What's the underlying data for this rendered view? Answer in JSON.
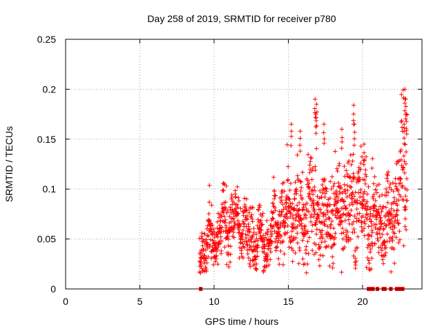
{
  "chart_data": {
    "type": "scatter",
    "title": "Day 258 of 2019, SRMTID for receiver p780",
    "xlabel": "GPS time / hours",
    "ylabel": "SRMTID / TECUs",
    "xlim": [
      0,
      24
    ],
    "ylim": [
      0,
      0.25
    ],
    "xticks": [
      0,
      5,
      10,
      15,
      20
    ],
    "xtick_labels": [
      "0",
      "5",
      "10",
      "15",
      "20"
    ],
    "yticks": [
      0,
      0.05,
      0.1,
      0.15,
      0.2,
      0.25
    ],
    "ytick_labels": [
      "0",
      "0.05",
      "0.1",
      "0.15",
      "0.2",
      "0.25"
    ],
    "grid": true,
    "marker": "plus",
    "marker_color": "#ff0000",
    "data_description": "Dense noisy cluster of plus markers from ~9 to ~23 hours; trend rises from ~0.04 near 9-10 h to ~0.07 at 11-12 h, dips to ~0.045 at 13-14 h, rises to ~0.08-0.1 at 15-20 h with spikes near 0.19 (16.8 h), 0.185 (19.4 h), 0.165 (15.2 h), and up to ~0.2 at 22.9 h.",
    "series": [
      {
        "name": "SRMTID",
        "envelope": [
          {
            "x": 9.0,
            "mean": 0.038,
            "spread": 0.012
          },
          {
            "x": 9.5,
            "mean": 0.045,
            "spread": 0.013
          },
          {
            "x": 10.0,
            "mean": 0.055,
            "spread": 0.015
          },
          {
            "x": 10.5,
            "mean": 0.06,
            "spread": 0.016
          },
          {
            "x": 11.0,
            "mean": 0.07,
            "spread": 0.015
          },
          {
            "x": 11.5,
            "mean": 0.068,
            "spread": 0.015
          },
          {
            "x": 12.0,
            "mean": 0.062,
            "spread": 0.015
          },
          {
            "x": 12.5,
            "mean": 0.055,
            "spread": 0.015
          },
          {
            "x": 13.0,
            "mean": 0.05,
            "spread": 0.014
          },
          {
            "x": 13.5,
            "mean": 0.045,
            "spread": 0.013
          },
          {
            "x": 14.0,
            "mean": 0.055,
            "spread": 0.015
          },
          {
            "x": 14.5,
            "mean": 0.07,
            "spread": 0.017
          },
          {
            "x": 15.0,
            "mean": 0.075,
            "spread": 0.02
          },
          {
            "x": 15.5,
            "mean": 0.07,
            "spread": 0.02
          },
          {
            "x": 16.0,
            "mean": 0.072,
            "spread": 0.02
          },
          {
            "x": 16.5,
            "mean": 0.085,
            "spread": 0.025
          },
          {
            "x": 17.0,
            "mean": 0.075,
            "spread": 0.022
          },
          {
            "x": 17.5,
            "mean": 0.07,
            "spread": 0.02
          },
          {
            "x": 18.0,
            "mean": 0.075,
            "spread": 0.022
          },
          {
            "x": 18.5,
            "mean": 0.08,
            "spread": 0.024
          },
          {
            "x": 19.0,
            "mean": 0.085,
            "spread": 0.025
          },
          {
            "x": 19.5,
            "mean": 0.09,
            "spread": 0.025
          },
          {
            "x": 20.0,
            "mean": 0.085,
            "spread": 0.025
          },
          {
            "x": 20.5,
            "mean": 0.07,
            "spread": 0.02
          },
          {
            "x": 21.0,
            "mean": 0.065,
            "spread": 0.02
          },
          {
            "x": 21.5,
            "mean": 0.07,
            "spread": 0.02
          },
          {
            "x": 22.0,
            "mean": 0.075,
            "spread": 0.022
          },
          {
            "x": 22.5,
            "mean": 0.1,
            "spread": 0.03
          },
          {
            "x": 23.0,
            "mean": 0.14,
            "spread": 0.04
          }
        ],
        "spikes": [
          {
            "x": 15.2,
            "y": 0.165
          },
          {
            "x": 15.8,
            "y": 0.158
          },
          {
            "x": 16.8,
            "y": 0.19
          },
          {
            "x": 16.85,
            "y": 0.175
          },
          {
            "x": 16.9,
            "y": 0.185
          },
          {
            "x": 17.4,
            "y": 0.165
          },
          {
            "x": 18.6,
            "y": 0.16
          },
          {
            "x": 19.4,
            "y": 0.184
          },
          {
            "x": 19.45,
            "y": 0.165
          },
          {
            "x": 20.1,
            "y": 0.145
          },
          {
            "x": 22.85,
            "y": 0.2
          },
          {
            "x": 22.9,
            "y": 0.19
          },
          {
            "x": 22.95,
            "y": 0.175
          },
          {
            "x": 22.8,
            "y": 0.165
          }
        ],
        "zero_markers_x": [
          9.1,
          20.4,
          20.5,
          20.6,
          20.7,
          21.0,
          21.4,
          21.5,
          21.9,
          22.3,
          22.5,
          22.6,
          22.7
        ]
      }
    ]
  }
}
